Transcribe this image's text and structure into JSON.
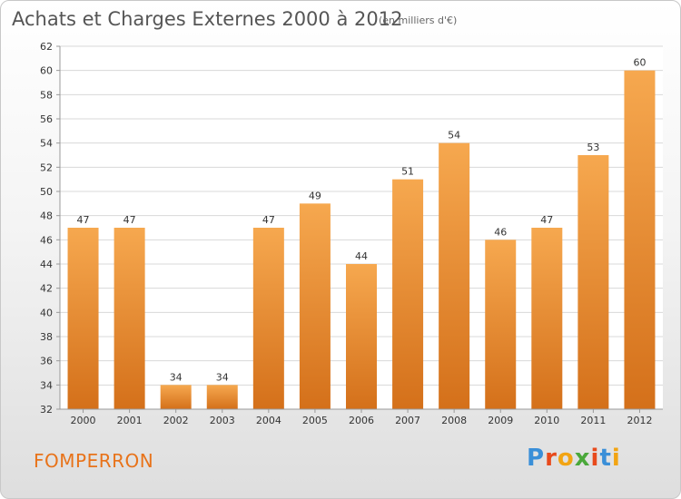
{
  "header": {
    "title": "Achats et Charges Externes 2000 à 2012",
    "subtitle": "(en milliers d'€)"
  },
  "footer": {
    "place": "FOMPERRON",
    "brand": "Proxiti"
  },
  "colors": {
    "bar_light": "#f6a84f",
    "bar_dark": "#d4701a",
    "place": "#e8731a",
    "logo": [
      "#3a8fd8",
      "#e84a1c",
      "#f2a413",
      "#4aa83a",
      "#e84a1c",
      "#3a8fd8",
      "#f2a413"
    ]
  },
  "chart_data": {
    "type": "bar",
    "categories": [
      "2000",
      "2001",
      "2002",
      "2003",
      "2004",
      "2005",
      "2006",
      "2007",
      "2008",
      "2009",
      "2010",
      "2011",
      "2012"
    ],
    "values": [
      47,
      47,
      34,
      34,
      47,
      49,
      44,
      51,
      54,
      46,
      47,
      53,
      60
    ],
    "title": "Achats et Charges Externes 2000 à 2012",
    "subtitle": "(en milliers d'€)",
    "ylim": [
      32,
      62
    ],
    "yticks": [
      32,
      34,
      36,
      38,
      40,
      42,
      44,
      46,
      48,
      50,
      52,
      54,
      56,
      58,
      60,
      62
    ],
    "grid": true,
    "data_labels": true
  }
}
